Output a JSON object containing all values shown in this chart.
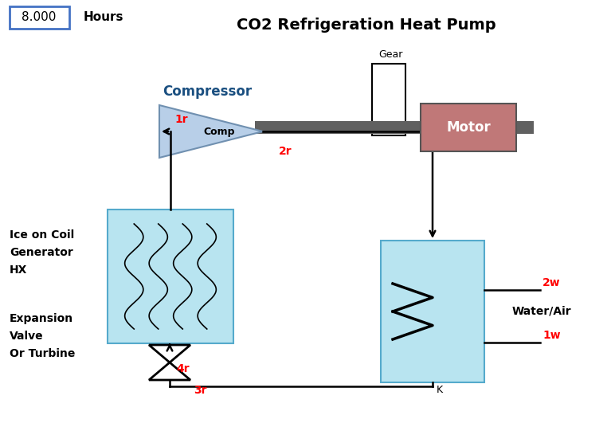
{
  "title": "CO2 Refrigeration Heat Pump",
  "hours_value": "8.000",
  "hours_label": "Hours",
  "gear_label": "Gear",
  "compressor_label": "Compressor",
  "comp_label": "Comp",
  "motor_label": "Motor",
  "ice_label": [
    "Ice on Coil",
    "Generator",
    "HX"
  ],
  "expansion_label": [
    "Expansion",
    "Valve",
    "Or Turbine"
  ],
  "water_air_label": "Water/Air",
  "k_label": "K",
  "flow_labels": {
    "1r": "1r",
    "2r": "2r",
    "3r": "3r",
    "4r": "4r",
    "2w": "2w",
    "1w": "1w"
  },
  "colors": {
    "background": "#ffffff",
    "compressor_fill": "#b8cfe8",
    "hx_box_fill": "#b8e4f0",
    "condenser_fill": "#b8e4f0",
    "motor_fill": "#c07878",
    "shaft_color": "#606060",
    "flow_line": "#000000",
    "flow_label": "#ff0000",
    "text_black": "#000000",
    "comp_label_color": "#1a4f80",
    "box_border": "#4472c4",
    "title_color": "#000000"
  },
  "figsize": [
    7.67,
    5.31
  ],
  "dpi": 100
}
